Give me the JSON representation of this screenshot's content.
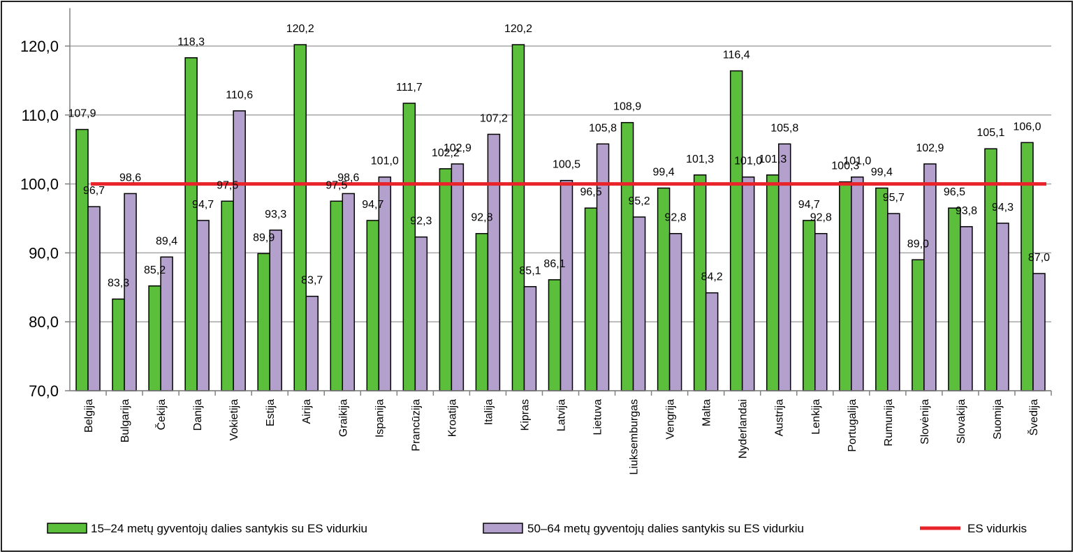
{
  "chart_data": {
    "type": "bar",
    "categories": [
      "Belgija",
      "Bulgarija",
      "Čekija",
      "Danija",
      "Vokietija",
      "Estija",
      "Airija",
      "Graikija",
      "Ispanija",
      "Prancūzija",
      "Kroatija",
      "Italija",
      "Kipras",
      "Latvija",
      "Lietuva",
      "Liuksemburgas",
      "Vengrija",
      "Malta",
      "Nyderlandai",
      "Austrija",
      "Lenkija",
      "Portugalija",
      "Rumunija",
      "Slovėnija",
      "Slovakija",
      "Suomija",
      "Švedija"
    ],
    "series": [
      {
        "name": "15–24 metų gyventojų dalies santykis su ES vidurkiu",
        "color": "#5cbf3c",
        "values": [
          107.9,
          83.3,
          85.2,
          118.3,
          97.5,
          89.9,
          120.2,
          97.5,
          94.7,
          111.7,
          102.2,
          92.8,
          120.2,
          86.1,
          96.5,
          108.9,
          99.4,
          101.3,
          116.4,
          101.3,
          94.7,
          100.3,
          99.4,
          89.0,
          96.5,
          105.1,
          106.0
        ],
        "labels": [
          "107,9",
          "83,3",
          "85,2",
          "118,3",
          "97,5",
          "89,9",
          "120,2",
          "97,5",
          "94,7",
          "111,7",
          "102,2",
          "92,8",
          "120,2",
          "86,1",
          "96,5",
          "108,9",
          "99,4",
          "101,3",
          "116,4",
          "101,3",
          "94,7",
          "100,3",
          "99,4",
          "89,0",
          "96,5",
          "105,1",
          "106,0"
        ]
      },
      {
        "name": "50–64 metų gyventojų dalies  santykis su ES vidurkiu",
        "color": "#b4a0cc",
        "values": [
          96.7,
          98.6,
          89.4,
          94.7,
          110.6,
          93.3,
          83.7,
          98.6,
          101.0,
          92.3,
          102.9,
          107.2,
          85.1,
          100.5,
          105.8,
          95.2,
          92.8,
          84.2,
          101.0,
          105.8,
          92.8,
          101.0,
          95.7,
          102.9,
          93.8,
          94.3,
          87.0
        ],
        "labels": [
          "96,7",
          "98,6",
          "89,4",
          "94,7",
          "110,6",
          "93,3",
          "83,7",
          "98,6",
          "101,0",
          "92,3",
          "102,9",
          "107,2",
          "85,1",
          "100,5",
          "105,8",
          "95,2",
          "92,8",
          "84,2",
          "101,0",
          "105,8",
          "92,8",
          "101,0",
          "95,7",
          "102,9",
          "93,8",
          "94,3",
          "87,0"
        ]
      }
    ],
    "reference_line": {
      "name": "ES vidurkis",
      "value": 100.0,
      "color": "#e8232a"
    },
    "y_axis": {
      "min": 70,
      "max": 125,
      "ticks": [
        70,
        80,
        90,
        100,
        110,
        120
      ],
      "tick_labels": [
        "70,0",
        "80,0",
        "90,0",
        "100,0",
        "110,0",
        "120,0"
      ]
    },
    "grid": true,
    "legend_position": "bottom",
    "title": "",
    "xlabel": "",
    "ylabel": ""
  }
}
